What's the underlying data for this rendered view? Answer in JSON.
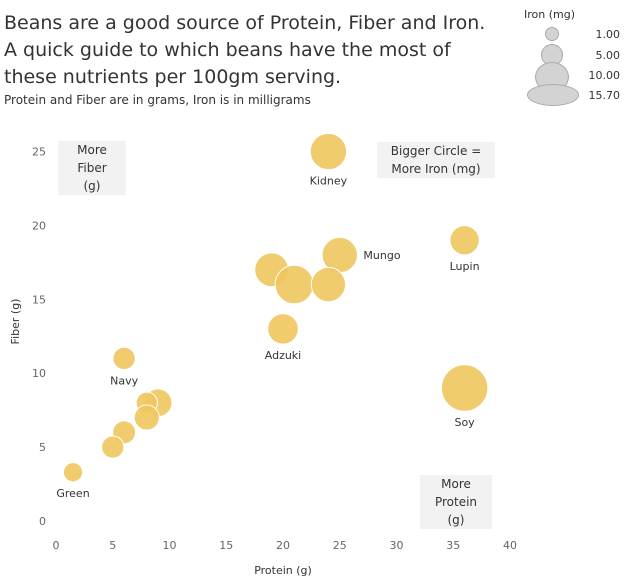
{
  "header": {
    "title": "Beans are a good source of Protein, Fiber and Iron. A quick guide to which beans have the most of these nutrients per 100gm serving.",
    "subtitle": "Protein and Fiber are in grams, Iron is in milligrams"
  },
  "legend": {
    "title": "Iron (mg)",
    "items": [
      "1.00",
      "5.00",
      "10.00",
      "15.70"
    ]
  },
  "annotations": {
    "more_fiber": [
      "More",
      "Fiber",
      "(g)"
    ],
    "more_iron": [
      "Bigger Circle =",
      "More Iron (mg)"
    ],
    "more_protein": [
      "More",
      "Protein",
      "(g)"
    ]
  },
  "chart_data": {
    "type": "scatter",
    "title": "Beans are a good source of Protein, Fiber and Iron. A quick guide to which beans have the most of these nutrients per 100gm serving.",
    "xlabel": "Protein (g)",
    "ylabel": "Fiber (g)",
    "xlim": [
      0,
      40
    ],
    "ylim": [
      0,
      27
    ],
    "xticks": [
      0,
      5,
      10,
      15,
      20,
      25,
      30,
      35,
      40
    ],
    "yticks": [
      0,
      5,
      10,
      15,
      20,
      25
    ],
    "size_field": "Iron (mg)",
    "grid": false,
    "color": "#f0c75e",
    "points": [
      {
        "label": "Kidney",
        "x": 24,
        "y": 25,
        "iron": 8.2
      },
      {
        "label": "Mungo",
        "x": 25,
        "y": 18,
        "iron": 7.6
      },
      {
        "label": "Lupin",
        "x": 36,
        "y": 19,
        "iron": 4.4
      },
      {
        "label": "Adzuki",
        "x": 20,
        "y": 13,
        "iron": 5.0
      },
      {
        "label": "Soy",
        "x": 36,
        "y": 9,
        "iron": 15.7
      },
      {
        "label": "Navy",
        "x": 6,
        "y": 11,
        "iron": 1.8
      },
      {
        "label": "Green",
        "x": 1.5,
        "y": 3.3,
        "iron": 1.0
      },
      {
        "label": "",
        "x": 19,
        "y": 17,
        "iron": 6.7
      },
      {
        "label": "",
        "x": 21,
        "y": 16,
        "iron": 9.6
      },
      {
        "label": "",
        "x": 24,
        "y": 16,
        "iron": 7.0
      },
      {
        "label": "",
        "x": 9,
        "y": 8,
        "iron": 3.7
      },
      {
        "label": "",
        "x": 8,
        "y": 8,
        "iron": 1.5
      },
      {
        "label": "",
        "x": 8,
        "y": 7,
        "iron": 2.7
      },
      {
        "label": "",
        "x": 6,
        "y": 6,
        "iron": 2.0
      },
      {
        "label": "",
        "x": 5,
        "y": 5,
        "iron": 1.8
      }
    ]
  }
}
